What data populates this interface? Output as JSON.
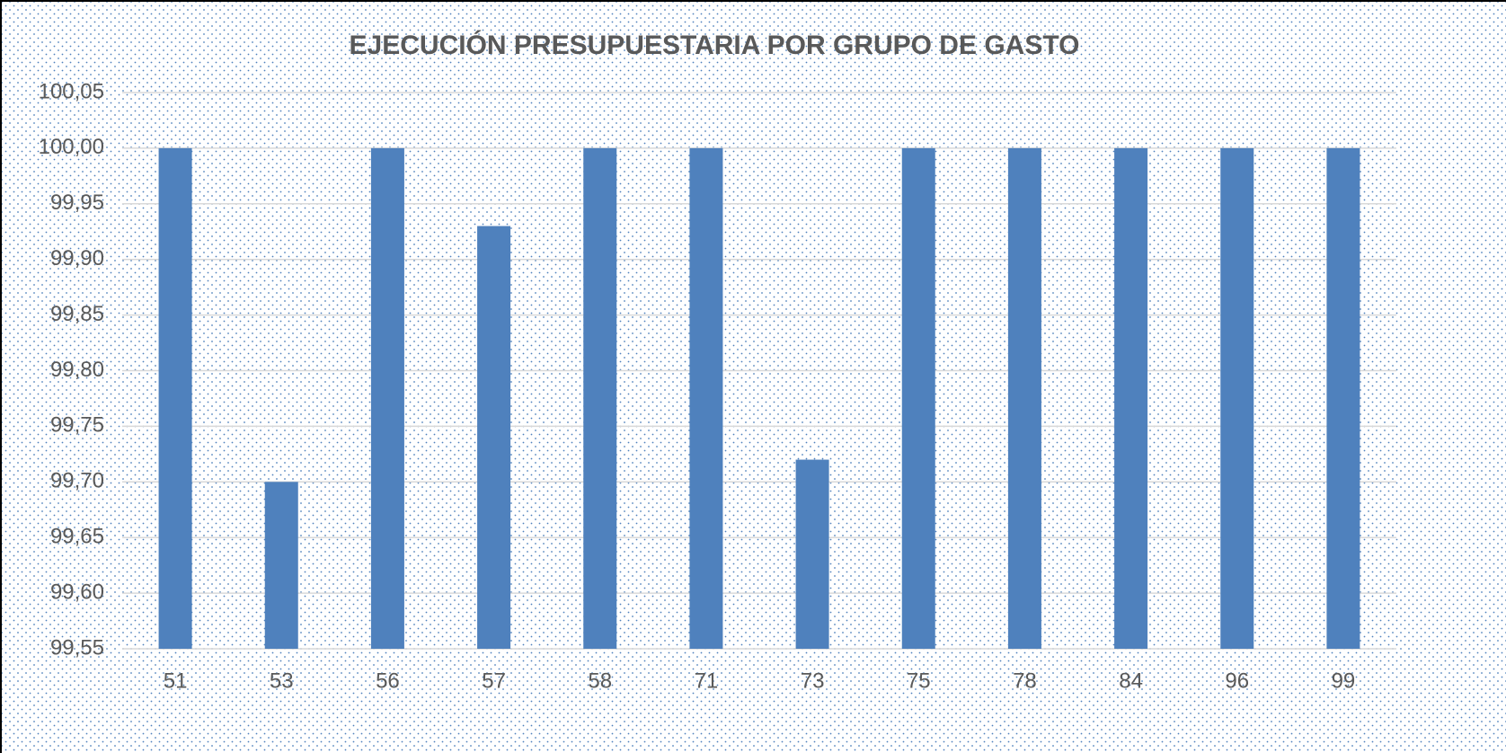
{
  "chart_data": {
    "type": "bar",
    "title": "EJECUCIÓN PRESUPUESTARIA POR GRUPO DE GASTO",
    "categories": [
      "51",
      "53",
      "56",
      "57",
      "58",
      "71",
      "73",
      "75",
      "78",
      "84",
      "96",
      "99"
    ],
    "values": [
      100.0,
      99.7,
      100.0,
      99.93,
      100.0,
      100.0,
      99.72,
      100.0,
      100.0,
      100.0,
      100.0,
      100.0
    ],
    "color": "#4f81bd",
    "ylim": [
      99.55,
      100.05
    ],
    "yticks": [
      {
        "value": 99.55,
        "label": "99,55"
      },
      {
        "value": 99.6,
        "label": "99,60"
      },
      {
        "value": 99.65,
        "label": "99,65"
      },
      {
        "value": 99.7,
        "label": "99,70"
      },
      {
        "value": 99.75,
        "label": "99,75"
      },
      {
        "value": 99.8,
        "label": "99,80"
      },
      {
        "value": 99.85,
        "label": "99,85"
      },
      {
        "value": 99.9,
        "label": "99,90"
      },
      {
        "value": 99.95,
        "label": "99,95"
      },
      {
        "value": 100.0,
        "label": "100,00"
      },
      {
        "value": 100.05,
        "label": "100,05"
      }
    ],
    "grid": true
  }
}
